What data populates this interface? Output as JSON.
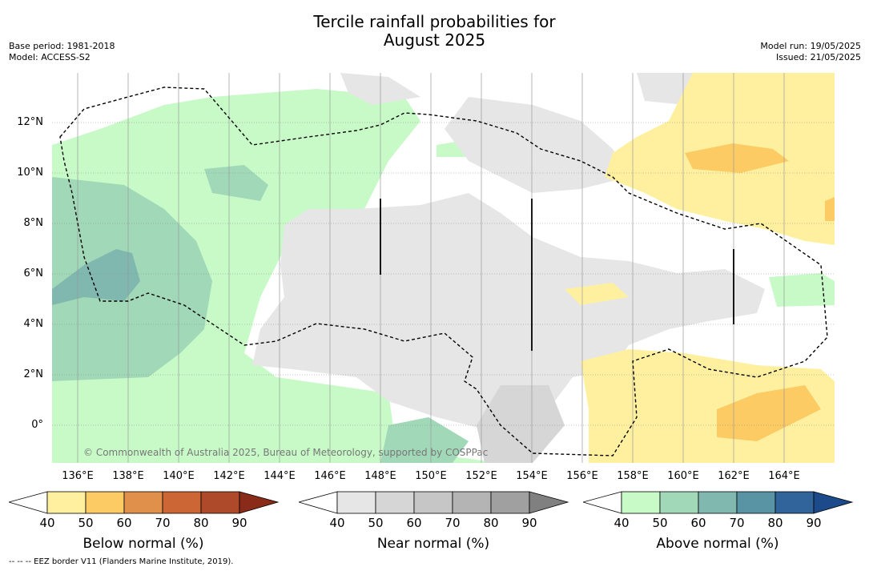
{
  "title_line1": "Tercile rainfall probabilities for",
  "title_line2": "August 2025",
  "base_period": "Base period: 1981-2018",
  "model": "Model: ACCESS-S2",
  "model_run": "Model run: 19/05/2025",
  "issued": "Issued: 21/05/2025",
  "x_ticks": [
    "136°E",
    "138°E",
    "140°E",
    "142°E",
    "144°E",
    "146°E",
    "148°E",
    "150°E",
    "152°E",
    "154°E",
    "156°E",
    "158°E",
    "160°E",
    "162°E",
    "164°E"
  ],
  "y_ticks": [
    "12°N",
    "10°N",
    "8°N",
    "6°N",
    "4°N",
    "2°N",
    "0°"
  ],
  "copyright": "© Commonwealth of Australia 2025, Bureau of Meteorology, supported by COSPPac",
  "colorbars": [
    {
      "label": "Below normal (%)",
      "ticks": [
        "40",
        "50",
        "60",
        "70",
        "80",
        "90"
      ],
      "colors": [
        "#ffffff",
        "#fff0a0",
        "#fdcb64",
        "#e0904a",
        "#cc6634",
        "#ae4a2a",
        "#8a2a18"
      ]
    },
    {
      "label": "Near normal (%)",
      "ticks": [
        "40",
        "50",
        "60",
        "70",
        "80",
        "90"
      ],
      "colors": [
        "#ffffff",
        "#e6e6e6",
        "#d6d6d6",
        "#c6c6c6",
        "#b4b4b4",
        "#a0a0a0",
        "#808080"
      ]
    },
    {
      "label": "Above normal (%)",
      "ticks": [
        "40",
        "50",
        "60",
        "70",
        "80",
        "90"
      ],
      "colors": [
        "#ffffff",
        "#c8fac8",
        "#a0d8b8",
        "#80b8b0",
        "#5894a4",
        "#30649a",
        "#1c4a8a"
      ]
    }
  ],
  "footer": "-- -- -- EEZ border V11 (Flanders Marine Institute, 2019)."
}
